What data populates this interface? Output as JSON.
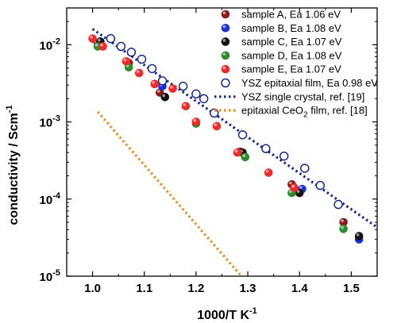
{
  "chart_data": {
    "type": "scatter",
    "xlabel": "1000/T  K",
    "xlabel_sup": "-1",
    "ylabel": "conductivity / Scm",
    "ylabel_sup": "-1",
    "xlim": [
      0.95,
      1.55
    ],
    "ylim": [
      1e-05,
      0.03
    ],
    "yscale": "log",
    "x_ticks": [
      1.0,
      1.1,
      1.2,
      1.3,
      1.4,
      1.5
    ],
    "x_tick_labels": [
      "1.0",
      "1.1",
      "1.2",
      "1.3",
      "1.4",
      "1.5"
    ],
    "y_ticks": [
      0.01,
      0.001,
      0.0001,
      1e-05
    ],
    "y_tick_labels": [
      {
        "base": "10",
        "exp": "-2"
      },
      {
        "base": "10",
        "exp": "-3"
      },
      {
        "base": "10",
        "exp": "-4"
      },
      {
        "base": "10",
        "exp": "-5"
      }
    ],
    "legend_position": "top-right",
    "grid": false,
    "series": [
      {
        "name": "sample A, Ea 1.06 eV",
        "marker": "filled-circle",
        "color": "#8b1a1a",
        "points": [
          [
            1.01,
            0.0105
          ],
          [
            1.07,
            0.0058
          ],
          [
            1.13,
            0.0024
          ],
          [
            1.285,
            0.00041
          ],
          [
            1.385,
            0.000155
          ],
          [
            1.485,
            5e-05
          ]
        ]
      },
      {
        "name": "sample B, Ea 1.08 eV",
        "marker": "filled-circle",
        "color": "#1c2fd8",
        "points": [
          [
            1.135,
            0.0029
          ],
          [
            1.405,
            0.000135
          ],
          [
            1.515,
            3e-05
          ]
        ]
      },
      {
        "name": "sample C, Ea 1.07 eV",
        "marker": "filled-circle",
        "color": "#111111",
        "points": [
          [
            1.015,
            0.011
          ],
          [
            1.14,
            0.0021
          ],
          [
            1.29,
            0.0004
          ],
          [
            1.4,
            0.00012
          ],
          [
            1.515,
            3.3e-05
          ]
        ]
      },
      {
        "name": "sample D, Ea 1.08 eV",
        "marker": "filled-circle",
        "color": "#2e8b2e",
        "points": [
          [
            1.01,
            0.0095
          ],
          [
            1.07,
            0.0051
          ],
          [
            1.2,
            0.00095
          ],
          [
            1.295,
            0.00035
          ],
          [
            1.385,
            0.00012
          ],
          [
            1.485,
            4.1e-05
          ]
        ]
      },
      {
        "name": "sample E, Ea 1.07 eV",
        "marker": "filled-circle",
        "color": "#ee2a2a",
        "points": [
          [
            1.0,
            0.012
          ],
          [
            1.02,
            0.0095
          ],
          [
            1.065,
            0.0061
          ],
          [
            1.09,
            0.0043
          ],
          [
            1.12,
            0.0031
          ],
          [
            1.155,
            0.0027
          ],
          [
            1.18,
            0.0016
          ],
          [
            1.2,
            0.001
          ],
          [
            1.24,
            0.00088
          ],
          [
            1.28,
            0.0004
          ],
          [
            1.34,
            0.00022
          ],
          [
            1.39,
            0.00014
          ]
        ]
      },
      {
        "name": "YSZ epitaxial film, Ea 0.98 eV",
        "marker": "open-circle",
        "color": "#1a2a8a",
        "points": [
          [
            1.035,
            0.012
          ],
          [
            1.055,
            0.0095
          ],
          [
            1.075,
            0.008
          ],
          [
            1.095,
            0.0065
          ],
          [
            1.115,
            0.0049
          ],
          [
            1.135,
            0.0034
          ],
          [
            1.175,
            0.0029
          ],
          [
            1.2,
            0.0023
          ],
          [
            1.215,
            0.002
          ],
          [
            1.235,
            0.0013
          ],
          [
            1.29,
            0.00068
          ],
          [
            1.335,
            0.00045
          ],
          [
            1.37,
            0.00036
          ],
          [
            1.41,
            0.00025
          ],
          [
            1.44,
            0.00015
          ],
          [
            1.475,
            8.5e-05
          ]
        ]
      },
      {
        "name": "YSZ single crystal, ref. [19]",
        "line": "dotted",
        "color": "#1a2a8a",
        "points": [
          [
            1.0,
            0.016
          ],
          [
            1.55,
            4.3e-05
          ]
        ]
      },
      {
        "name_prefix": "epitaxial CeO",
        "name_sub": "2",
        "name_suffix": " film, ref. [18]",
        "line": "dotted",
        "color": "#f08a24",
        "points": [
          [
            1.01,
            0.00135
          ],
          [
            1.285,
            1.05e-05
          ]
        ]
      }
    ]
  }
}
